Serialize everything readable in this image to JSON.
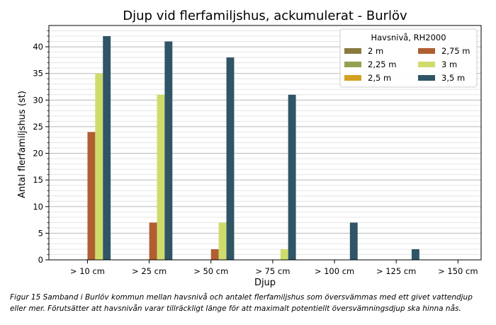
{
  "chart_data": {
    "type": "bar",
    "title": "Djup vid flerfamiljshus, ackumulerat - Burlöv",
    "xlabel": "Djup",
    "ylabel": "Antal flerfamiljshus (st)",
    "ylim": [
      0,
      44
    ],
    "yticks": [
      0,
      5,
      10,
      15,
      20,
      25,
      30,
      35,
      40
    ],
    "grid": true,
    "categories": [
      "> 10 cm",
      "> 25 cm",
      "> 50 cm",
      "> 75 cm",
      "> 100 cm",
      "> 125 cm",
      "> 150 cm"
    ],
    "legend": {
      "title": "Havsnivå, RH2000",
      "position": "upper-right",
      "columns": 2
    },
    "series": [
      {
        "name": "2 m",
        "color": "#8b7a3e",
        "values": [
          0,
          0,
          0,
          0,
          0,
          0,
          0
        ]
      },
      {
        "name": "2,25 m",
        "color": "#96a050",
        "values": [
          0,
          0,
          0,
          0,
          0,
          0,
          0
        ]
      },
      {
        "name": "2,5 m",
        "color": "#d4a020",
        "values": [
          0,
          0,
          0,
          0,
          0,
          0,
          0
        ]
      },
      {
        "name": "2,75 m",
        "color": "#b05f31",
        "values": [
          24,
          7,
          2,
          0,
          0,
          0,
          0
        ]
      },
      {
        "name": "3 m",
        "color": "#cfdc6c",
        "values": [
          35,
          31,
          7,
          2,
          0,
          0,
          0
        ]
      },
      {
        "name": "3,5 m",
        "color": "#2f5566",
        "values": [
          42,
          41,
          38,
          31,
          7,
          2,
          0
        ]
      }
    ]
  },
  "caption": "Figur 15 Samband i Burlöv kommun mellan havsnivå och antalet flerfamiljshus som översvämmas med ett givet vattendjup eller mer. Förutsätter att havsnivån varar tillräckligt länge för att maximalt potentiellt översvämningsdjup ska hinna nås."
}
